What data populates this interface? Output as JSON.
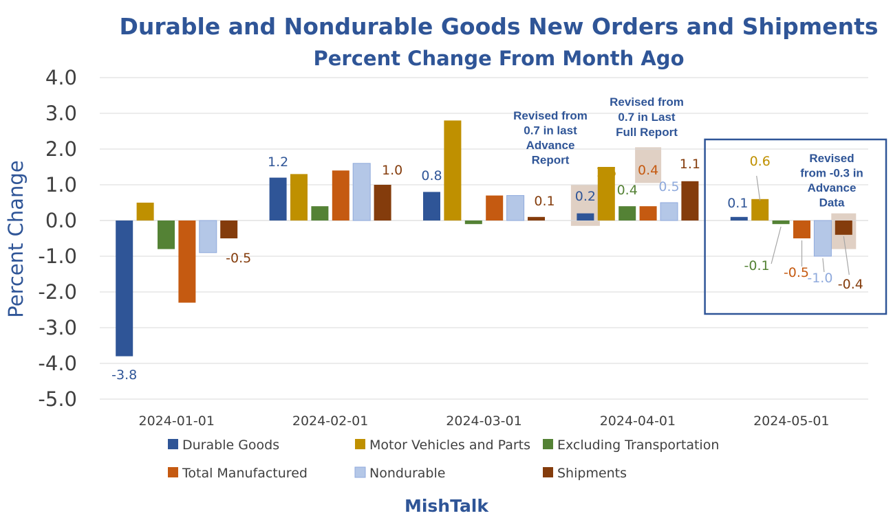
{
  "chart_data": {
    "type": "bar",
    "title": "Durable and Nondurable Goods New Orders and Shipments",
    "subtitle": "Percent Change From Month Ago",
    "ylabel": "Percent Change",
    "xlabel": "",
    "ylim": [
      -5.0,
      4.0
    ],
    "yticks": [
      "4.0",
      "3.0",
      "2.0",
      "1.0",
      "0.0",
      "-1.0",
      "-2.0",
      "-3.0",
      "-4.0",
      "-5.0"
    ],
    "categories": [
      "2024-01-01",
      "2024-02-01",
      "2024-03-01",
      "2024-04-01",
      "2024-05-01"
    ],
    "grid": true,
    "legend_position": "bottom",
    "series": [
      {
        "name": "Durable Goods",
        "color": "#2f5597",
        "values": [
          -3.8,
          1.2,
          0.8,
          0.2,
          0.1
        ]
      },
      {
        "name": "Motor Vehicles and Parts",
        "color": "#bf9000",
        "values": [
          0.5,
          1.3,
          2.8,
          1.5,
          0.6
        ]
      },
      {
        "name": "Excluding Transportation",
        "color": "#548235",
        "values": [
          -0.8,
          0.4,
          -0.1,
          0.4,
          -0.1
        ]
      },
      {
        "name": "Total Manufactured",
        "color": "#c55a11",
        "values": [
          -2.3,
          1.4,
          0.7,
          0.4,
          -0.5
        ]
      },
      {
        "name": "Nondurable",
        "color": "#b4c7e7",
        "values": [
          -0.9,
          1.6,
          0.7,
          0.5,
          -1.0
        ]
      },
      {
        "name": "Shipments",
        "color": "#843c0c",
        "values": [
          -0.5,
          1.0,
          0.1,
          1.1,
          -0.4
        ]
      }
    ],
    "data_labels": [
      {
        "series": 0,
        "category": 0,
        "text": "-3.8"
      },
      {
        "series": 5,
        "category": 0,
        "text": "-0.5"
      },
      {
        "series": 0,
        "category": 1,
        "text": "1.2"
      },
      {
        "series": 5,
        "category": 1,
        "text": "1.0"
      },
      {
        "series": 0,
        "category": 2,
        "text": "0.8"
      },
      {
        "series": 5,
        "category": 2,
        "text": "0.1"
      },
      {
        "series": 0,
        "category": 3,
        "text": "0.2"
      },
      {
        "series": 1,
        "category": 3,
        "text": "1.5"
      },
      {
        "series": 2,
        "category": 3,
        "text": "0.4"
      },
      {
        "series": 3,
        "category": 3,
        "text": "0.4"
      },
      {
        "series": 4,
        "category": 3,
        "text": "0.5"
      },
      {
        "series": 5,
        "category": 3,
        "text": "1.1"
      },
      {
        "series": 0,
        "category": 4,
        "text": "0.1"
      },
      {
        "series": 1,
        "category": 4,
        "text": "0.6"
      },
      {
        "series": 2,
        "category": 4,
        "text": "-0.1"
      },
      {
        "series": 3,
        "category": 4,
        "text": "-0.5"
      },
      {
        "series": 4,
        "category": 4,
        "text": "-1.0"
      },
      {
        "series": 5,
        "category": 4,
        "text": "-0.4"
      }
    ],
    "annotations": [
      {
        "text": [
          "Revised from",
          "0.7 in last",
          "Advance",
          "Report"
        ],
        "series": 0,
        "category": 3
      },
      {
        "text": [
          "Revised from",
          "0.7 in Last",
          "Full Report"
        ],
        "series": 3,
        "category": 3
      },
      {
        "text": [
          "Revised",
          "from -0.3 in",
          "Advance",
          "Data"
        ],
        "series": 5,
        "category": 4
      }
    ],
    "highlight_box_category": 4
  },
  "credit": "MishTalk"
}
